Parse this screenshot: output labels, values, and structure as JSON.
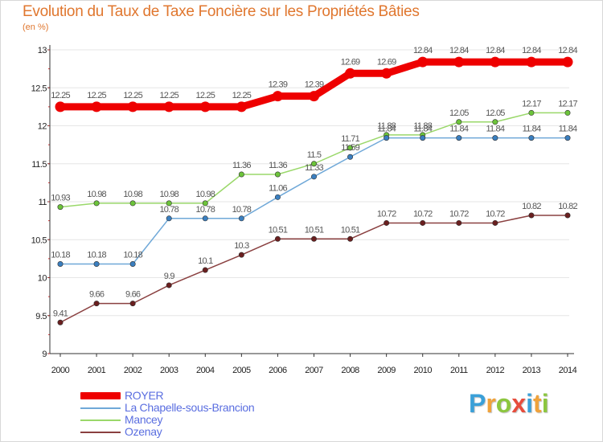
{
  "header": {
    "title": "Evolution du Taux de Taxe Foncière sur les Propriétés Bâties",
    "unit": "(en %)"
  },
  "brand": {
    "text": "Proxiti",
    "letters": [
      {
        "ch": "P",
        "color": "#3aa0d8"
      },
      {
        "ch": "r",
        "color": "#f0a23a"
      },
      {
        "ch": "o",
        "color": "#8cc63f"
      },
      {
        "ch": "x",
        "color": "#e74c3c"
      },
      {
        "ch": "i",
        "color": "#3aa0d8"
      },
      {
        "ch": "t",
        "color": "#f0a23a"
      },
      {
        "ch": "i",
        "color": "#8cc63f"
      }
    ]
  },
  "chart_data": {
    "type": "line",
    "title": "Evolution du Taux de Taxe Foncière sur les Propriétés Bâties",
    "ylabel": "(en %)",
    "xlabel": "",
    "ylim": [
      9,
      13
    ],
    "yticks": [
      "9",
      "9.5",
      "10",
      "10.5",
      "11",
      "11.5",
      "12",
      "12.5",
      "13"
    ],
    "x": [
      "2000",
      "2001",
      "2002",
      "2003",
      "2004",
      "2005",
      "2006",
      "2007",
      "2008",
      "2009",
      "2010",
      "2011",
      "2012",
      "2013",
      "2014"
    ],
    "legend_position": "bottom-left",
    "series": [
      {
        "name": "ROYER",
        "color": "#ee0000",
        "marker": "#ee0000",
        "values": [
          12.25,
          12.25,
          12.25,
          12.25,
          12.25,
          12.25,
          12.39,
          12.39,
          12.69,
          12.69,
          12.84,
          12.84,
          12.84,
          12.84,
          12.84
        ],
        "labels": [
          "12.25",
          "12.25",
          "12.25",
          "12.25",
          "12.25",
          "12.25",
          "12.39",
          "12.39",
          "12.69",
          "12.69",
          "12.84",
          "12.84",
          "12.84",
          "12.84",
          "12.84"
        ]
      },
      {
        "name": "La Chapelle-sous-Brancion",
        "color": "#6fa8d8",
        "marker": "#3a7fc0",
        "values": [
          10.18,
          10.18,
          10.18,
          10.78,
          10.78,
          10.78,
          11.06,
          11.33,
          11.59,
          11.84,
          11.84,
          11.84,
          11.84,
          11.84,
          11.84
        ],
        "labels": [
          "10.18",
          "10.18",
          "10.18",
          "10.78",
          "10.78",
          "10.78",
          "11.06",
          "11.33",
          "11.59",
          "11.84",
          "11.84",
          "11.84",
          "11.84",
          "11.84",
          "11.84"
        ]
      },
      {
        "name": "Mancey",
        "color": "#9ad86a",
        "marker": "#6cc43a",
        "values": [
          10.93,
          10.98,
          10.98,
          10.98,
          10.98,
          11.36,
          11.36,
          11.5,
          11.71,
          11.88,
          11.88,
          12.05,
          12.05,
          12.17,
          12.17
        ],
        "labels": [
          "10.93",
          "10.98",
          "10.98",
          "10.98",
          "10.98",
          "11.36",
          "11.36",
          "11.5",
          "11.71",
          "11.88",
          "11.88",
          "12.05",
          "12.05",
          "12.17",
          "12.17"
        ]
      },
      {
        "name": "Ozenay",
        "color": "#8a4040",
        "marker": "#6a1f1f",
        "values": [
          9.41,
          9.66,
          9.66,
          9.9,
          10.1,
          10.3,
          10.51,
          10.51,
          10.51,
          10.72,
          10.72,
          10.72,
          10.72,
          10.82,
          10.82
        ],
        "labels": [
          "9.41",
          "9.66",
          "9.66",
          "9.9",
          "10.1",
          "10.3",
          "10.51",
          "10.51",
          "10.51",
          "10.72",
          "10.72",
          "10.72",
          "10.72",
          "10.82",
          "10.82"
        ]
      }
    ]
  }
}
